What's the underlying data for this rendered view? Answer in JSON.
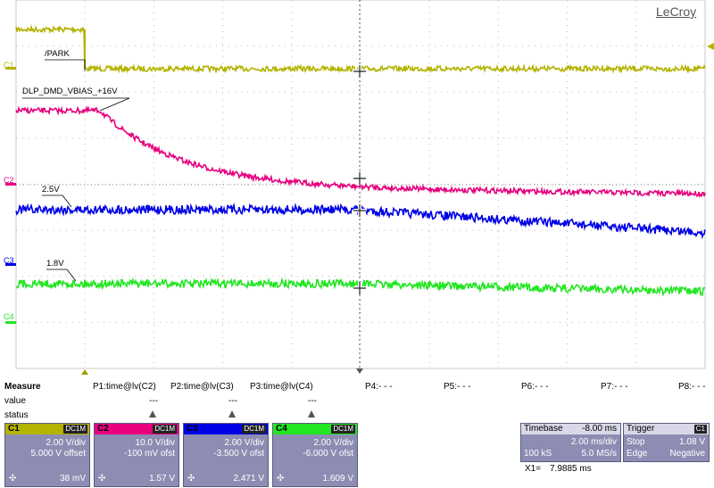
{
  "brand": "LeCroy",
  "trace_labels": {
    "park": "/PARK",
    "vbias": "DLP_DMD_VBIAS_+16V",
    "v25": "2.5V",
    "v18": "1.8V"
  },
  "channel_markers": [
    "C1",
    "C2",
    "C3",
    "C4"
  ],
  "colors": {
    "c1": "#b3b300",
    "c2": "#e6007e",
    "c3": "#0000e6",
    "c4": "#22e622",
    "box": "#8d8db3"
  },
  "measure": {
    "title": "Measure",
    "value_label": "value",
    "status_label": "status",
    "params": [
      {
        "name": "P1:time@lv(C2)",
        "value": "---",
        "warn": true
      },
      {
        "name": "P2:time@lv(C3)",
        "value": "---",
        "warn": true
      },
      {
        "name": "P3:time@lv(C4)",
        "value": "---",
        "warn": true
      },
      {
        "name": "P4:- - -",
        "value": "",
        "warn": false
      },
      {
        "name": "P5:- - -",
        "value": "",
        "warn": false
      },
      {
        "name": "P6:- - -",
        "value": "",
        "warn": false
      },
      {
        "name": "P7:- - -",
        "value": "",
        "warn": false
      },
      {
        "name": "P8:- - -",
        "value": "",
        "warn": false
      }
    ]
  },
  "channels": [
    {
      "name": "C1",
      "coupling": "DC1M",
      "vdiv": "2.00 V/div",
      "offset": "5.000 V offset",
      "value": "38 mV"
    },
    {
      "name": "C2",
      "coupling": "DC1M",
      "vdiv": "10.0 V/div",
      "offset": "-100 mV ofst",
      "value": "1.57 V"
    },
    {
      "name": "C3",
      "coupling": "DC1M",
      "vdiv": "2.00 V/div",
      "offset": "-3.500 V ofst",
      "value": "2.471 V"
    },
    {
      "name": "C4",
      "coupling": "DC1M",
      "vdiv": "2.00 V/div",
      "offset": "-6.000 V ofst",
      "value": "1.609 V"
    }
  ],
  "timebase": {
    "title": "Timebase",
    "delay": "-8.00 ms",
    "tdiv": "2.00 ms/div",
    "samples": "100 kS",
    "rate": "5.0 MS/s"
  },
  "trigger": {
    "title": "Trigger",
    "source": "C1",
    "mode": "Stop",
    "level": "1.08 V",
    "type": "Edge",
    "slope": "Negative"
  },
  "cursor": {
    "label": "X1=",
    "value": "7.9885 ms"
  }
}
